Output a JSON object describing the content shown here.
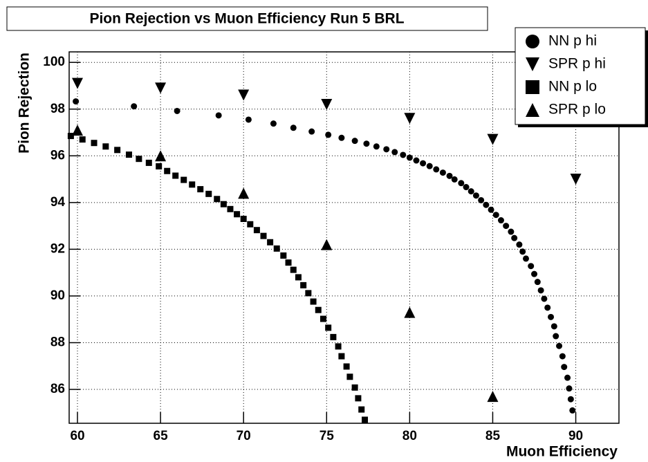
{
  "chart_data": {
    "type": "scatter",
    "title": "Pion Rejection vs Muon Efficiency Run 5 BRL",
    "x_label": "Muon Efficiency",
    "y_label": "Pion Rejection",
    "xlim": [
      59.5,
      92.6
    ],
    "ylim": [
      84.55,
      100.45
    ],
    "xticks": [
      60,
      65,
      70,
      75,
      80,
      85,
      90
    ],
    "yticks": [
      86,
      88,
      90,
      92,
      94,
      96,
      98,
      100
    ],
    "grid": true,
    "legend": "top-right",
    "series": [
      {
        "name": "NN p hi",
        "color": "#000000",
        "marker": "circle",
        "x": [
          59.9,
          63.4,
          66.0,
          68.5,
          70.3,
          71.8,
          73.0,
          74.1,
          75.1,
          75.9,
          76.7,
          77.4,
          78.0,
          78.6,
          79.1,
          79.6,
          80.0,
          80.4,
          80.8,
          81.2,
          81.6,
          82.0,
          82.4,
          82.7,
          83.1,
          83.4,
          83.7,
          84.0,
          84.3,
          84.6,
          84.9,
          85.2,
          85.5,
          85.8,
          86.1,
          86.3,
          86.6,
          86.8,
          87.0,
          87.3,
          87.5,
          87.7,
          87.9,
          88.1,
          88.3,
          88.5,
          88.7,
          88.8,
          89.0,
          89.2,
          89.3,
          89.5,
          89.6,
          89.7,
          89.8
        ],
        "values": [
          98.33,
          98.12,
          97.92,
          97.73,
          97.55,
          97.38,
          97.2,
          97.04,
          96.9,
          96.77,
          96.64,
          96.52,
          96.4,
          96.28,
          96.16,
          96.04,
          95.92,
          95.8,
          95.68,
          95.56,
          95.42,
          95.28,
          95.14,
          94.99,
          94.83,
          94.66,
          94.48,
          94.3,
          94.1,
          93.9,
          93.69,
          93.47,
          93.24,
          93.0,
          92.75,
          92.48,
          92.2,
          91.9,
          91.6,
          91.28,
          90.94,
          90.6,
          90.24,
          89.88,
          89.5,
          89.1,
          88.7,
          88.28,
          87.86,
          87.42,
          86.96,
          86.5,
          86.04,
          85.58,
          85.1
        ]
      },
      {
        "name": "SPR p hi",
        "color": "#000000",
        "marker": "triangle-down",
        "x": [
          60,
          65,
          70,
          75,
          80,
          85,
          90
        ],
        "values": [
          99.1,
          98.9,
          98.6,
          98.2,
          97.6,
          96.7,
          95.0
        ]
      },
      {
        "name": "NN p lo",
        "color": "#000000",
        "marker": "square",
        "x": [
          59.6,
          60.3,
          61.0,
          61.7,
          62.4,
          63.1,
          63.7,
          64.3,
          64.9,
          65.4,
          65.9,
          66.4,
          66.9,
          67.4,
          67.9,
          68.4,
          68.8,
          69.2,
          69.6,
          70.0,
          70.4,
          70.8,
          71.2,
          71.6,
          72.0,
          72.4,
          72.7,
          73.0,
          73.3,
          73.6,
          73.9,
          74.2,
          74.5,
          74.8,
          75.1,
          75.4,
          75.7,
          75.9,
          76.2,
          76.4,
          76.7,
          76.9,
          77.1,
          77.3
        ],
        "values": [
          96.85,
          96.7,
          96.55,
          96.4,
          96.25,
          96.05,
          95.87,
          95.7,
          95.55,
          95.35,
          95.15,
          94.97,
          94.77,
          94.57,
          94.37,
          94.15,
          93.93,
          93.72,
          93.5,
          93.3,
          93.07,
          92.82,
          92.57,
          92.3,
          92.03,
          91.73,
          91.43,
          91.12,
          90.8,
          90.46,
          90.12,
          89.76,
          89.4,
          89.02,
          88.64,
          88.24,
          87.84,
          87.42,
          86.98,
          86.54,
          86.08,
          85.62,
          85.14,
          84.7
        ]
      },
      {
        "name": "SPR p lo",
        "color": "#000000",
        "marker": "triangle-up",
        "x": [
          60,
          65,
          70,
          75,
          80,
          85
        ],
        "values": [
          97.1,
          96.0,
          94.4,
          92.2,
          89.3,
          85.7
        ]
      }
    ]
  }
}
